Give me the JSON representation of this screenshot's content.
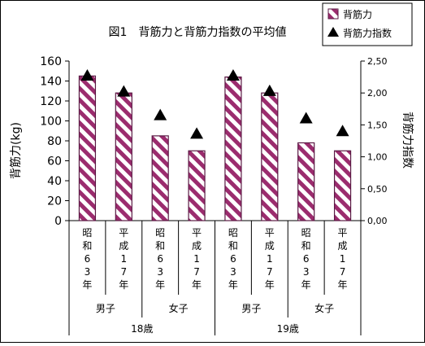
{
  "chart_data": {
    "type": "bar",
    "title": "図1　背筋力と背筋力指数の平均値",
    "ylabel": "背筋力(kg)",
    "y2label": "背筋力指数",
    "ylim": [
      0,
      160
    ],
    "yticks": [
      "0",
      "20",
      "40",
      "60",
      "80",
      "100",
      "120",
      "140",
      "160"
    ],
    "y2lim": [
      0,
      2.5
    ],
    "y2ticks": [
      "0,00",
      "0,50",
      "1,00",
      "1,50",
      "2,00",
      "2,50"
    ],
    "categories": [
      "昭和63年",
      "平成17年",
      "昭和63年",
      "平成17年",
      "昭和63年",
      "平成17年",
      "昭和63年",
      "平成17年"
    ],
    "groups": [
      {
        "label": "男子",
        "span": 2
      },
      {
        "label": "女子",
        "span": 2
      },
      {
        "label": "男子",
        "span": 2
      },
      {
        "label": "女子",
        "span": 2
      }
    ],
    "top_groups": [
      {
        "label": "18歳",
        "span": 4
      },
      {
        "label": "19歳",
        "span": 4
      }
    ],
    "series": [
      {
        "name": "背筋力",
        "type": "bar",
        "axis": "left",
        "values": [
          145,
          128,
          85,
          70,
          144,
          128,
          78,
          70
        ]
      },
      {
        "name": "背筋力指数",
        "type": "marker",
        "axis": "right",
        "values": [
          2.27,
          2.02,
          1.65,
          1.36,
          2.27,
          2.03,
          1.6,
          1.4
        ]
      }
    ],
    "legend_position": "top-right",
    "grid": false,
    "colors": {
      "bar_stripe": "#9b2c6e",
      "bar_edge": "#5a1a44",
      "marker": "#000000"
    }
  }
}
